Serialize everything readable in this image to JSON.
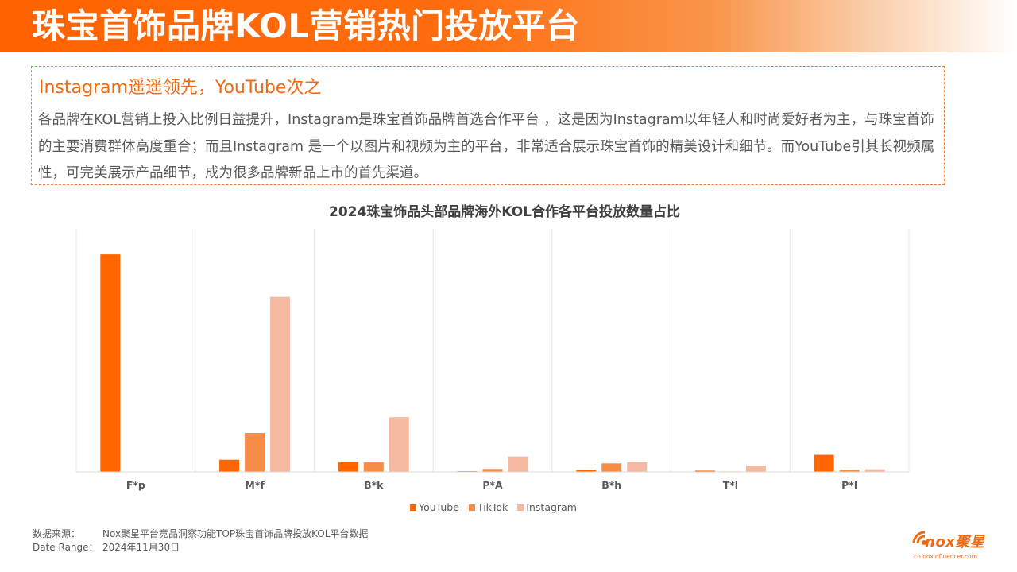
{
  "header": {
    "title": "珠宝首饰品牌KOL营销热门投放平台"
  },
  "callout": {
    "heading": "Instagram遥遥领先，YouTube次之",
    "body": "各品牌在KOL营销上投入比例日益提升，Instagram是珠宝首饰品牌首选合作平台 ，这是因为Instagram以年轻人和时尚爱好者为主，与珠宝首饰的主要消费群体高度重合；而且Instagram 是一个以图片和视频为主的平台，非常适合展示珠宝首饰的精美设计和细节。而YouTube引其长视频属性，可完美展示产品细节，成为很多品牌新品上市的首先渠道。"
  },
  "chart_data": {
    "type": "bar",
    "title": "2024珠宝饰品头部品牌海外KOL合作各平台投放数量占比",
    "xlabel": "",
    "ylabel": "",
    "ylim": [
      0,
      100
    ],
    "grid": "vertical category separators",
    "legend_position": "bottom",
    "categories": [
      "F*p",
      "M*f",
      "B*k",
      "P*A",
      "B*h",
      "T*l",
      "P*l"
    ],
    "series": [
      {
        "name": "YouTube",
        "color": "#ff6600",
        "values": [
          89.5,
          5,
          4,
          0.3,
          0.8,
          0.5,
          7
        ]
      },
      {
        "name": "TikTok",
        "color": "#f58d49",
        "values": [
          0,
          16,
          4,
          1.2,
          3.5,
          0.2,
          0.9
        ]
      },
      {
        "name": "Instagram",
        "color": "#f5b9a2",
        "values": [
          0,
          72,
          22.5,
          6.3,
          4,
          2.5,
          1.1
        ]
      }
    ]
  },
  "footer": {
    "source_label": "数据来源：",
    "source_text": "Nox聚星平台竞品洞察功能TOP珠宝首饰品牌投放KOL平台数据",
    "date_label": "Date  Range：",
    "date_text": "2024年11月30日"
  },
  "logo": {
    "wordmark": "nox聚星",
    "url": "cn.noxinfluencer.com"
  }
}
